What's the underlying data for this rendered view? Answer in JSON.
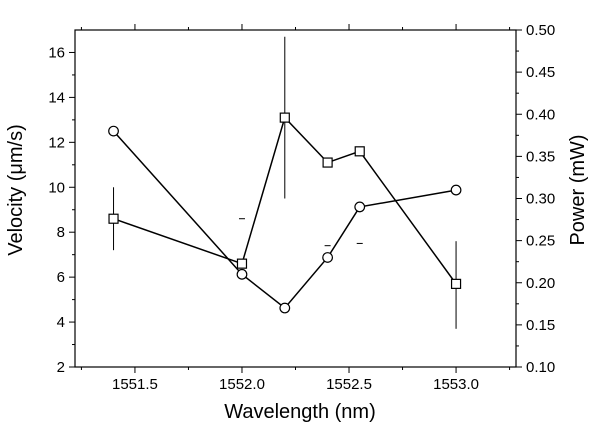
{
  "chart_data": {
    "type": "line",
    "xlabel": "Wavelength (nm)",
    "ylabel_left": "Velocity (μm/s)",
    "ylabel_right": "Power (mW)",
    "xlim": [
      1551.22,
      1553.28
    ],
    "ylim_left": [
      2,
      17
    ],
    "ylim_right": [
      0.1,
      0.5
    ],
    "x_ticks": [
      1551.5,
      1552.0,
      1552.5,
      1553.0
    ],
    "x_tick_labels": [
      "1551.5",
      "1552.0",
      "1552.5",
      "1553.0"
    ],
    "y_left_ticks": [
      2,
      4,
      6,
      8,
      10,
      12,
      14,
      16
    ],
    "y_left_tick_labels": [
      "2",
      "4",
      "6",
      "8",
      "10",
      "12",
      "14",
      "16"
    ],
    "y_right_ticks": [
      0.1,
      0.15,
      0.2,
      0.25,
      0.3,
      0.35,
      0.4,
      0.45,
      0.5
    ],
    "y_right_tick_labels": [
      "0.10",
      "0.15",
      "0.20",
      "0.25",
      "0.30",
      "0.35",
      "0.40",
      "0.45",
      "0.50"
    ],
    "grid": false,
    "series": [
      {
        "axis": "left",
        "marker": "square",
        "x": [
          1551.4,
          1552.0,
          1552.2,
          1552.4,
          1552.55,
          1553.0
        ],
        "y": [
          8.6,
          6.6,
          13.1,
          11.1,
          11.6,
          5.7
        ],
        "error_low": [
          7.2,
          null,
          9.5,
          null,
          null,
          3.7
        ],
        "error_high": [
          10.0,
          8.6,
          16.7,
          7.4,
          7.5,
          7.6
        ]
      },
      {
        "axis": "right",
        "marker": "circle",
        "x": [
          1551.4,
          1552.0,
          1552.2,
          1552.4,
          1552.55,
          1553.0
        ],
        "y": [
          0.38,
          0.21,
          0.17,
          0.23,
          0.29,
          0.31
        ]
      }
    ],
    "colors": {
      "line": "#000000",
      "marker_fill": "#ffffff"
    }
  }
}
